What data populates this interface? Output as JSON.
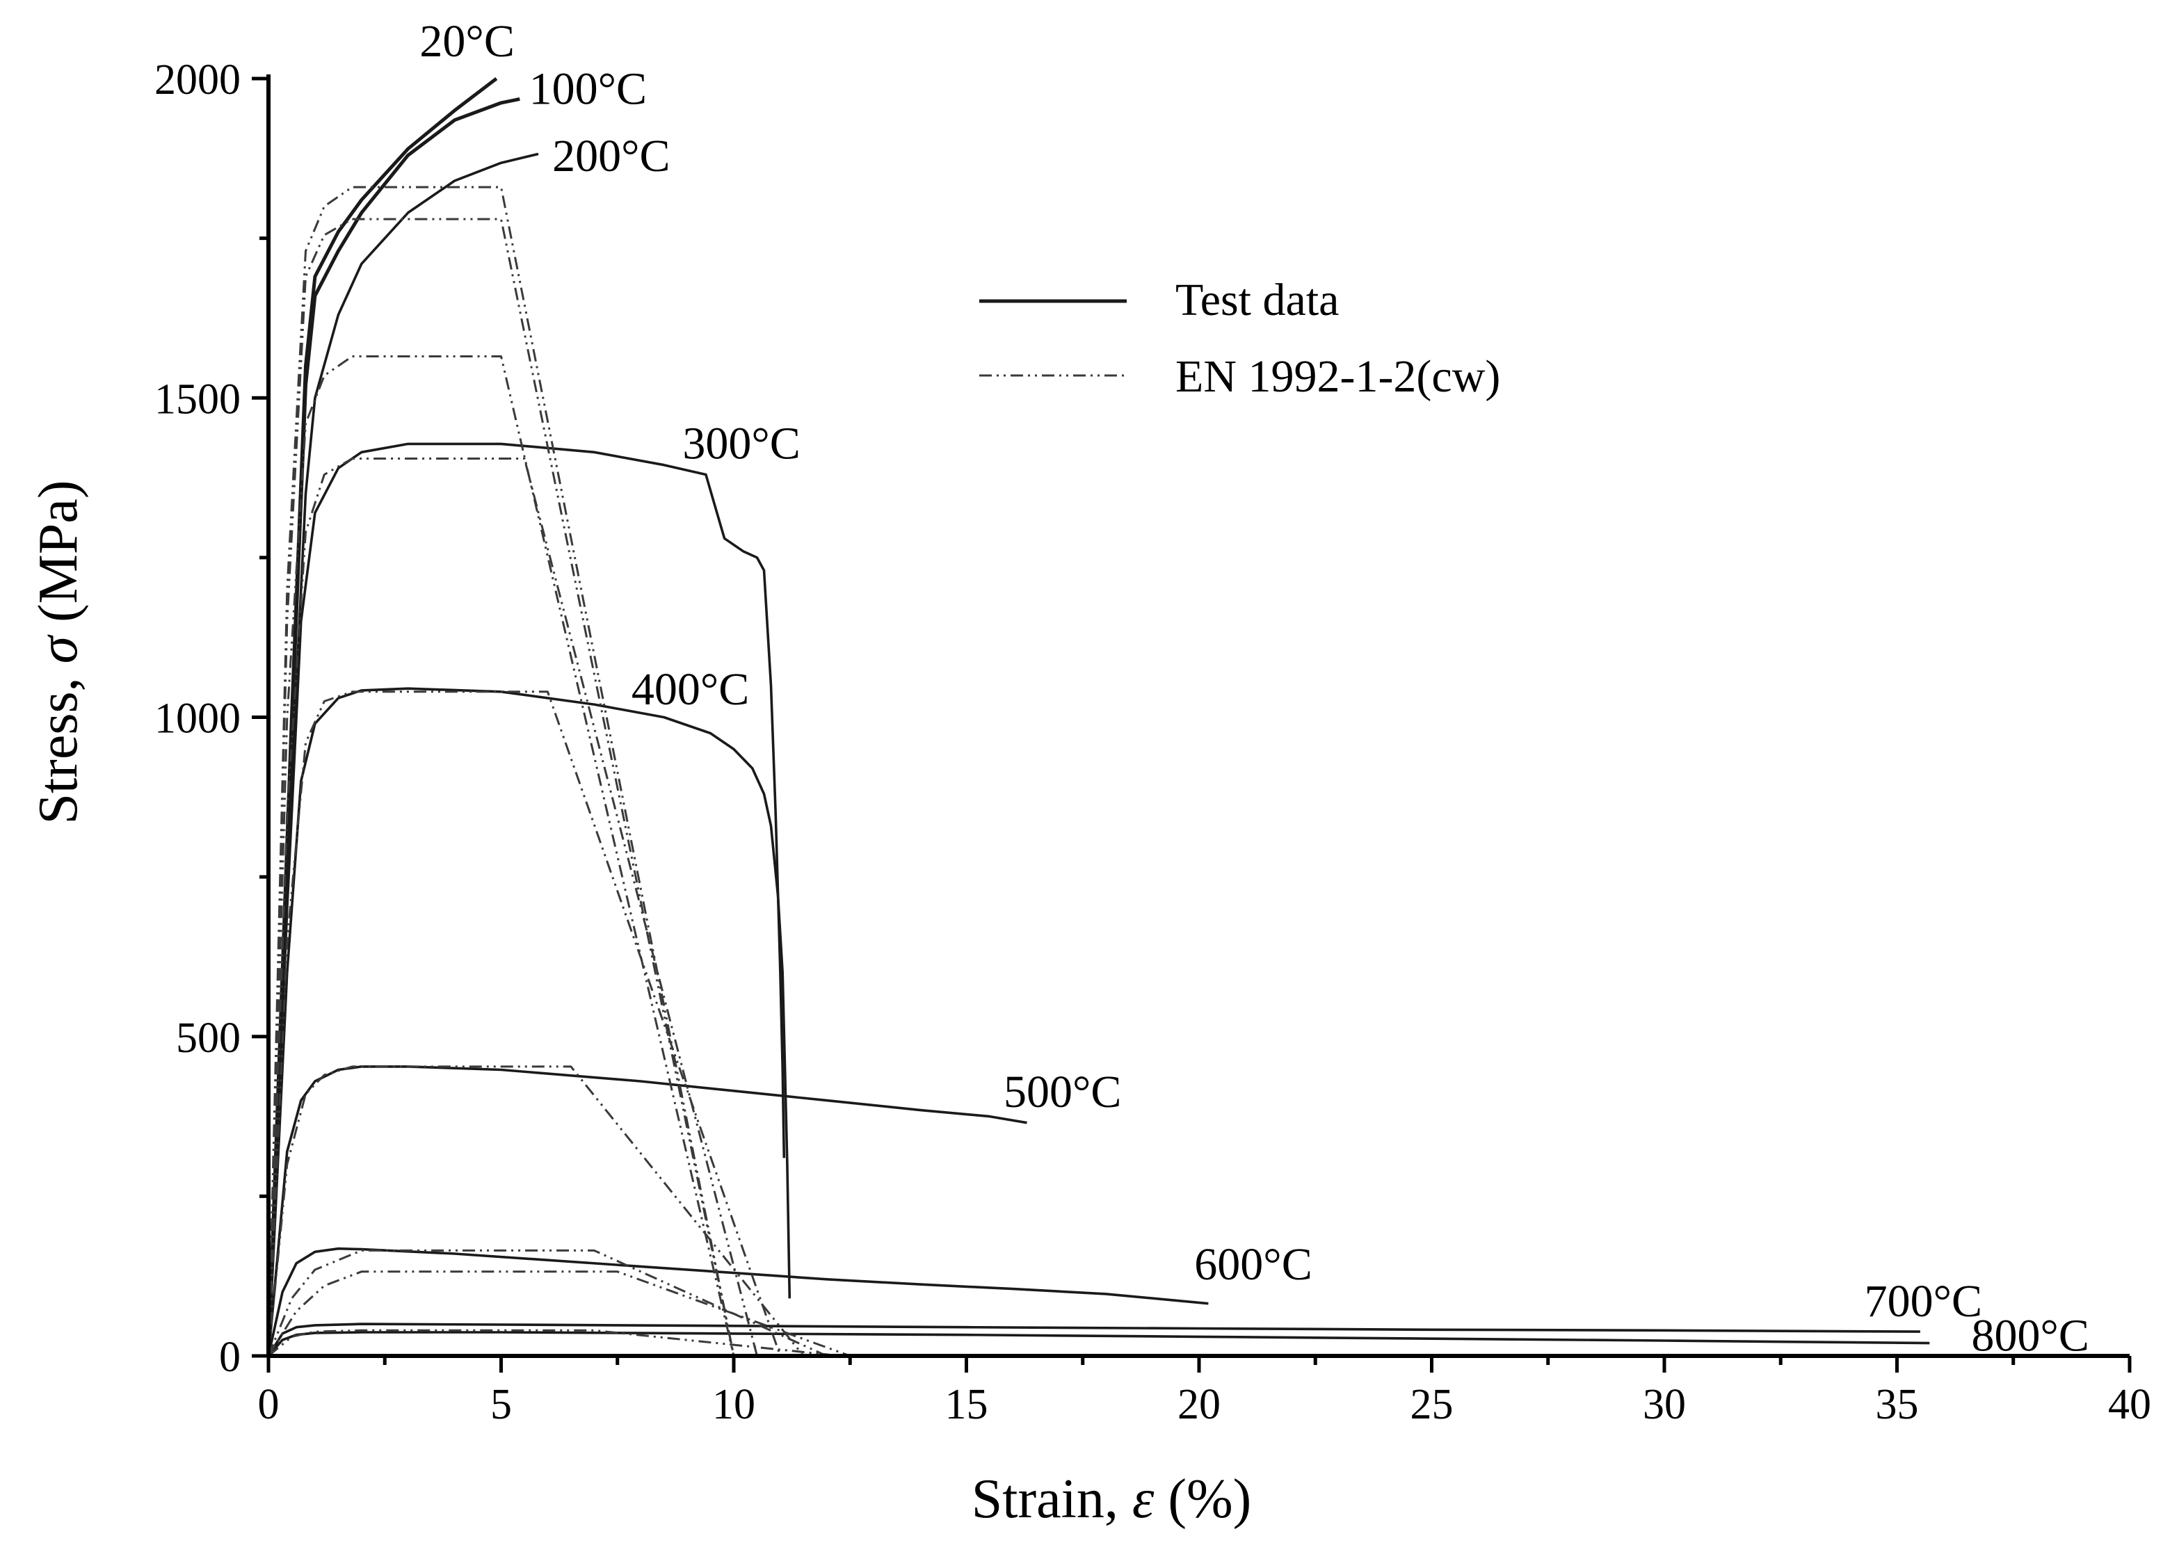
{
  "chart_data": {
    "type": "line",
    "title": "",
    "xlabel_prefix": "Strain, ",
    "xlabel_symbol": "ε",
    "xlabel_suffix": " (%)",
    "ylabel_prefix": "Stress, ",
    "ylabel_symbol": "σ",
    "ylabel_suffix": " (MPa)",
    "xlim": [
      0,
      40
    ],
    "ylim": [
      0,
      2000
    ],
    "x_ticks": [
      0,
      5,
      10,
      15,
      20,
      25,
      30,
      35,
      40
    ],
    "x_tick_labels": [
      "0",
      "5",
      "10",
      "15",
      "20",
      "25",
      "30",
      "35",
      "40"
    ],
    "x_minor_step": 2.5,
    "y_ticks": [
      0,
      500,
      1000,
      1500,
      2000
    ],
    "y_tick_labels": [
      "0",
      "500",
      "1000",
      "1500",
      "2000"
    ],
    "y_minor_step": 250,
    "grid": false,
    "legend": {
      "placement": "top-center",
      "entries": [
        {
          "label": "Test data",
          "style": "solid"
        },
        {
          "label": "EN 1992-1-2(cw)",
          "style": "dash-dot-dot"
        }
      ]
    },
    "series": [
      {
        "name": "20°C",
        "kind": "test",
        "label": "20°C",
        "label_at": [
          3.25,
          2035
        ],
        "points": [
          [
            0,
            0
          ],
          [
            0.5,
            1000
          ],
          [
            0.8,
            1550
          ],
          [
            1.0,
            1690
          ],
          [
            1.5,
            1760
          ],
          [
            2,
            1810
          ],
          [
            3,
            1890
          ],
          [
            4,
            1950
          ],
          [
            4.9,
            2000
          ]
        ]
      },
      {
        "name": "100°C",
        "kind": "test",
        "label": "100°C",
        "label_at": [
          5.6,
          1960
        ],
        "points": [
          [
            0,
            0
          ],
          [
            0.5,
            980
          ],
          [
            0.8,
            1520
          ],
          [
            1.0,
            1660
          ],
          [
            1.5,
            1730
          ],
          [
            2,
            1790
          ],
          [
            3,
            1880
          ],
          [
            4,
            1935
          ],
          [
            5,
            1962
          ],
          [
            5.4,
            1968
          ]
        ]
      },
      {
        "name": "200°C",
        "kind": "test",
        "label": "200°C",
        "label_at": [
          6.1,
          1855
        ],
        "points": [
          [
            0,
            0
          ],
          [
            0.5,
            900
          ],
          [
            0.8,
            1350
          ],
          [
            1.0,
            1500
          ],
          [
            1.5,
            1630
          ],
          [
            2,
            1710
          ],
          [
            3,
            1790
          ],
          [
            4,
            1840
          ],
          [
            5,
            1868
          ],
          [
            5.8,
            1882
          ]
        ]
      },
      {
        "name": "300°C",
        "kind": "test",
        "label": "300°C",
        "label_at": [
          8.9,
          1405
        ],
        "points": [
          [
            0,
            0
          ],
          [
            0.4,
            700
          ],
          [
            0.7,
            1150
          ],
          [
            1.0,
            1320
          ],
          [
            1.5,
            1390
          ],
          [
            2,
            1415
          ],
          [
            3,
            1428
          ],
          [
            5,
            1428
          ],
          [
            7,
            1415
          ],
          [
            8.5,
            1395
          ],
          [
            9.4,
            1380
          ],
          [
            9.6,
            1330
          ],
          [
            9.8,
            1280
          ],
          [
            10.2,
            1260
          ],
          [
            10.5,
            1250
          ],
          [
            10.65,
            1230
          ],
          [
            10.8,
            1050
          ],
          [
            10.9,
            850
          ],
          [
            11.0,
            600
          ],
          [
            11.05,
            450
          ],
          [
            11.08,
            310
          ]
        ]
      },
      {
        "name": "400°C",
        "kind": "test",
        "label": "400°C",
        "label_at": [
          7.8,
          1020
        ],
        "points": [
          [
            0,
            0
          ],
          [
            0.4,
            600
          ],
          [
            0.7,
            900
          ],
          [
            1.0,
            990
          ],
          [
            1.5,
            1030
          ],
          [
            2,
            1042
          ],
          [
            3,
            1045
          ],
          [
            5,
            1040
          ],
          [
            7,
            1020
          ],
          [
            8.5,
            1000
          ],
          [
            9.5,
            975
          ],
          [
            10,
            950
          ],
          [
            10.4,
            920
          ],
          [
            10.65,
            880
          ],
          [
            10.8,
            830
          ],
          [
            10.95,
            720
          ],
          [
            11.05,
            600
          ],
          [
            11.1,
            450
          ],
          [
            11.15,
            300
          ],
          [
            11.2,
            90
          ]
        ]
      },
      {
        "name": "500°C",
        "kind": "test",
        "label": "500°C",
        "label_at": [
          15.8,
          390
        ],
        "points": [
          [
            0,
            0
          ],
          [
            0.4,
            320
          ],
          [
            0.7,
            400
          ],
          [
            1.0,
            430
          ],
          [
            1.5,
            448
          ],
          [
            2,
            453
          ],
          [
            3,
            453
          ],
          [
            5,
            448
          ],
          [
            8,
            430
          ],
          [
            10,
            415
          ],
          [
            12,
            400
          ],
          [
            14,
            385
          ],
          [
            15.5,
            375
          ],
          [
            16.3,
            365
          ]
        ]
      },
      {
        "name": "600°C",
        "kind": "test",
        "label": "600°C",
        "label_at": [
          19.9,
          120
        ],
        "points": [
          [
            0,
            0
          ],
          [
            0.3,
            100
          ],
          [
            0.6,
            145
          ],
          [
            1,
            163
          ],
          [
            1.5,
            168
          ],
          [
            2,
            167
          ],
          [
            4,
            160
          ],
          [
            6,
            150
          ],
          [
            8,
            140
          ],
          [
            10,
            130
          ],
          [
            12,
            120
          ],
          [
            14,
            112
          ],
          [
            16,
            105
          ],
          [
            18,
            97
          ],
          [
            20.2,
            82
          ]
        ]
      },
      {
        "name": "700°C",
        "kind": "test",
        "label": "700°C",
        "label_at": [
          34.3,
          62
        ],
        "points": [
          [
            0,
            0
          ],
          [
            0.3,
            35
          ],
          [
            0.6,
            45
          ],
          [
            1,
            48
          ],
          [
            2,
            50
          ],
          [
            5,
            49
          ],
          [
            10,
            47
          ],
          [
            15,
            45
          ],
          [
            20,
            43
          ],
          [
            25,
            41
          ],
          [
            30,
            40
          ],
          [
            35.5,
            38
          ]
        ]
      },
      {
        "name": "800°C",
        "kind": "test",
        "label": "800°C",
        "label_at": [
          36.6,
          8
        ],
        "points": [
          [
            0,
            0
          ],
          [
            0.3,
            25
          ],
          [
            0.6,
            33
          ],
          [
            1,
            36
          ],
          [
            2,
            37
          ],
          [
            5,
            37
          ],
          [
            10,
            35
          ],
          [
            15,
            33
          ],
          [
            20,
            30
          ],
          [
            25,
            27
          ],
          [
            30,
            24
          ],
          [
            35.7,
            20
          ]
        ]
      },
      {
        "name": "EN 20°C",
        "kind": "en",
        "points": [
          [
            0,
            0
          ],
          [
            0.4,
            1200
          ],
          [
            0.8,
            1730
          ],
          [
            1.2,
            1800
          ],
          [
            1.8,
            1830
          ],
          [
            3,
            1830
          ],
          [
            5,
            1830
          ],
          [
            10,
            0
          ]
        ]
      },
      {
        "name": "EN 100°C",
        "kind": "en",
        "points": [
          [
            0,
            0
          ],
          [
            0.4,
            1150
          ],
          [
            0.8,
            1690
          ],
          [
            1.2,
            1755
          ],
          [
            1.8,
            1780
          ],
          [
            3,
            1780
          ],
          [
            5,
            1780
          ],
          [
            10,
            0
          ]
        ]
      },
      {
        "name": "EN 200°C",
        "kind": "en",
        "points": [
          [
            0,
            0
          ],
          [
            0.4,
            1000
          ],
          [
            0.8,
            1460
          ],
          [
            1.2,
            1535
          ],
          [
            1.8,
            1565
          ],
          [
            3,
            1565
          ],
          [
            5,
            1565
          ],
          [
            10,
            0
          ]
        ]
      },
      {
        "name": "EN 300°C",
        "kind": "en",
        "points": [
          [
            0,
            0
          ],
          [
            0.4,
            850
          ],
          [
            0.8,
            1290
          ],
          [
            1.2,
            1380
          ],
          [
            1.8,
            1405
          ],
          [
            3,
            1405
          ],
          [
            5.5,
            1405
          ],
          [
            10.5,
            0
          ]
        ]
      },
      {
        "name": "EN 400°C",
        "kind": "en",
        "points": [
          [
            0,
            0
          ],
          [
            0.4,
            650
          ],
          [
            0.8,
            960
          ],
          [
            1.2,
            1025
          ],
          [
            1.8,
            1040
          ],
          [
            3,
            1040
          ],
          [
            6,
            1040
          ],
          [
            11,
            0
          ]
        ]
      },
      {
        "name": "EN 500°C",
        "kind": "en",
        "points": [
          [
            0,
            0
          ],
          [
            0.4,
            300
          ],
          [
            0.8,
            410
          ],
          [
            1.2,
            440
          ],
          [
            1.8,
            453
          ],
          [
            3,
            453
          ],
          [
            6.5,
            453
          ],
          [
            11.5,
            0
          ]
        ]
      },
      {
        "name": "EN 600°C",
        "kind": "en",
        "points": [
          [
            0,
            0
          ],
          [
            0.5,
            90
          ],
          [
            1,
            135
          ],
          [
            1.5,
            150
          ],
          [
            2,
            165
          ],
          [
            5,
            165
          ],
          [
            7,
            165
          ],
          [
            12,
            0
          ]
        ]
      },
      {
        "name": "EN 600°C (b)",
        "kind": "en",
        "points": [
          [
            0,
            0
          ],
          [
            0.6,
            70
          ],
          [
            1.2,
            110
          ],
          [
            2,
            132
          ],
          [
            5,
            132
          ],
          [
            7.5,
            132
          ],
          [
            12.5,
            0
          ]
        ]
      },
      {
        "name": "EN 700°C",
        "kind": "en",
        "points": [
          [
            0,
            0
          ],
          [
            0.5,
            30
          ],
          [
            1,
            38
          ],
          [
            2,
            40
          ],
          [
            7,
            40
          ],
          [
            12.3,
            0
          ]
        ]
      }
    ]
  }
}
